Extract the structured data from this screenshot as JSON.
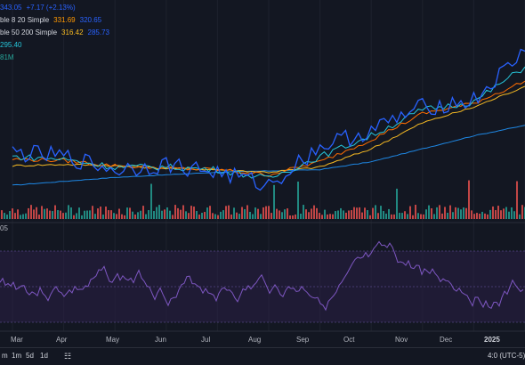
{
  "legend": {
    "price": {
      "value": "343.05",
      "change": "+7.17 (+2.13%)"
    },
    "ma1": {
      "label": "ble 8 20 Simple",
      "v1": "331.69",
      "v2": "320.65"
    },
    "ma2": {
      "label": "ble 50 200 Simple",
      "v1": "316.42",
      "v2": "285.73"
    },
    "ma3": {
      "value": "295.40"
    },
    "volume": {
      "value": "81M"
    },
    "rsi": {
      "label": "05"
    }
  },
  "colors": {
    "background": "#131722",
    "price": "#2962ff",
    "ma8": "#26c6da",
    "ma20": "#ff6d00",
    "ma50": "#f5b922",
    "ma200": "#1e88e5",
    "vol_up": "#26a69a",
    "vol_down": "#ef5350",
    "rsi": "#7e57c2"
  },
  "x_axis": [
    "Mar",
    "Apr",
    "May",
    "Jun",
    "Jul",
    "Aug",
    "Sep",
    "Oct",
    "Nov",
    "Dec",
    "2025"
  ],
  "bottom_bar": {
    "timeframes": [
      "m",
      "1m",
      "5d",
      "1d"
    ],
    "time": "4:0 (UTC-5)",
    "calendar_icon": "calendar-icon"
  },
  "chart_data": {
    "type": "line",
    "x": [
      "Mar",
      "Apr",
      "May",
      "Jun",
      "Jul",
      "Aug",
      "Sep",
      "Oct",
      "Nov",
      "Dec",
      "2025"
    ],
    "series": [
      {
        "name": "price",
        "values": [
          265,
          262,
          252,
          256,
          250,
          240,
          270,
          282,
          300,
          305,
          343
        ]
      },
      {
        "name": "ma8",
        "values": [
          262,
          260,
          254,
          254,
          252,
          245,
          262,
          278,
          298,
          304,
          331
        ]
      },
      {
        "name": "ma20",
        "values": [
          260,
          259,
          255,
          253,
          252,
          248,
          258,
          275,
          295,
          303,
          320
        ]
      },
      {
        "name": "ma50",
        "values": [
          255,
          256,
          255,
          253,
          252,
          250,
          254,
          268,
          288,
          300,
          316
        ]
      },
      {
        "name": "ma200",
        "values": [
          240,
          243,
          246,
          248,
          250,
          251,
          252,
          258,
          268,
          278,
          286
        ]
      }
    ]
  }
}
